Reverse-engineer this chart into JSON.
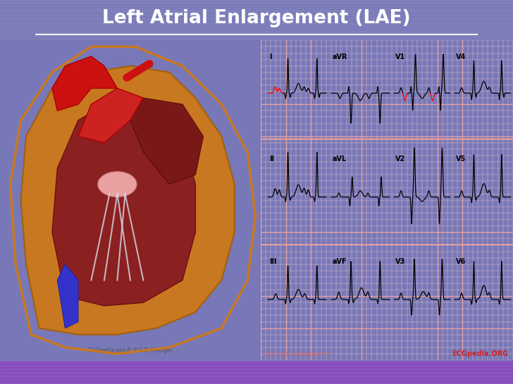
{
  "title": "Left Atrial Enlargement (LAE)",
  "title_color": "#ffffff",
  "title_bg_color": "#7878b8",
  "title_stripe_colors": [
    "#8080c0",
    "#9090cc"
  ],
  "footer_bg_color": "#9900bb",
  "footer_stripe_color": "#aa00cc",
  "main_bg_color": "#f0dede",
  "heart_bg_color": "#f0dede",
  "ecg_bg_color": "#fff5f5",
  "ecg_grid_major_color": "#e8a0a0",
  "ecg_grid_minor_color": "#f5cccc",
  "bottom_text_left": "ECGpedia.org © R.C.B. Kreuger",
  "bottom_text_center": "left atrial enlargement",
  "bottom_text_right": "ECGpedia.ORG",
  "lead_row_labels": [
    [
      "I",
      "aVR",
      "V1",
      "V4"
    ],
    [
      "II",
      "aVL",
      "V2",
      "V5"
    ],
    [
      "III",
      "aVF",
      "V3",
      "V6"
    ]
  ]
}
